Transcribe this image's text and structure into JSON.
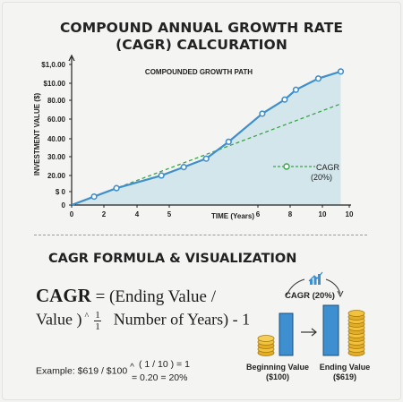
{
  "title_line1": "COMPOUND ANNUAL GROWTH RATE",
  "title_line2": "(CAGR) CALCURATION",
  "chart_data": {
    "type": "line",
    "title": "COMPOUNDED GROWTH PATH",
    "xlabel": "TIME (Years)",
    "ylabel": "INVESTMENT VALUE ($)",
    "x_ticks": [
      "0",
      "2",
      "4",
      "5",
      "6",
      "8",
      "10",
      "10"
    ],
    "y_ticks": [
      "$ 0",
      "0",
      "20.00",
      "30.00",
      "40.00",
      "60.00",
      "80.00",
      "$10.00",
      "$1,0.00"
    ],
    "series": [
      {
        "role": "actual",
        "x": [
          0,
          1,
          2,
          4,
          5,
          6,
          7,
          8.5,
          9.5,
          10,
          11,
          12
        ],
        "y": [
          0,
          6,
          12,
          21,
          27,
          33,
          45,
          65,
          75,
          82,
          90,
          95
        ]
      },
      {
        "name": "CAGR (20%)",
        "role": "cagr",
        "x": [
          0,
          12
        ],
        "y": [
          0,
          72
        ]
      }
    ],
    "legend_label_1": "CAGR",
    "legend_label_2": "(20%)",
    "legend_position": "right-middle",
    "colors": {
      "line": "#3f8fca",
      "fill": "#cfe4ea",
      "cagr": "#3aa548",
      "axis": "#222222"
    }
  },
  "section_heading": "CAGR FORMULA & VISUALIZATION",
  "formula": {
    "lead": "CAGR",
    "line1_rest": " = (Ending Value /",
    "line2_start": "Value )",
    "caret": "^",
    "frac_num": "1",
    "frac_den": "1",
    "line2_end": "Number of Years) - 1"
  },
  "example": {
    "part1": "Example: $619 / $100",
    "caret": "^",
    "part2": "( 1 / 10 ) = 1",
    "part3": "= 0.20 = 20%"
  },
  "viz": {
    "bubble": "CAGR (20%)",
    "beginning_label": "Beginning Value",
    "beginning_value": "($100)",
    "ending_label": "Ending Value",
    "ending_value": "($619)",
    "bar_color": "#3d8fd0",
    "coin_color": "#e8b830",
    "icon_name": "growth-chart-icon",
    "arrow_name": "right-arrow-icon"
  }
}
